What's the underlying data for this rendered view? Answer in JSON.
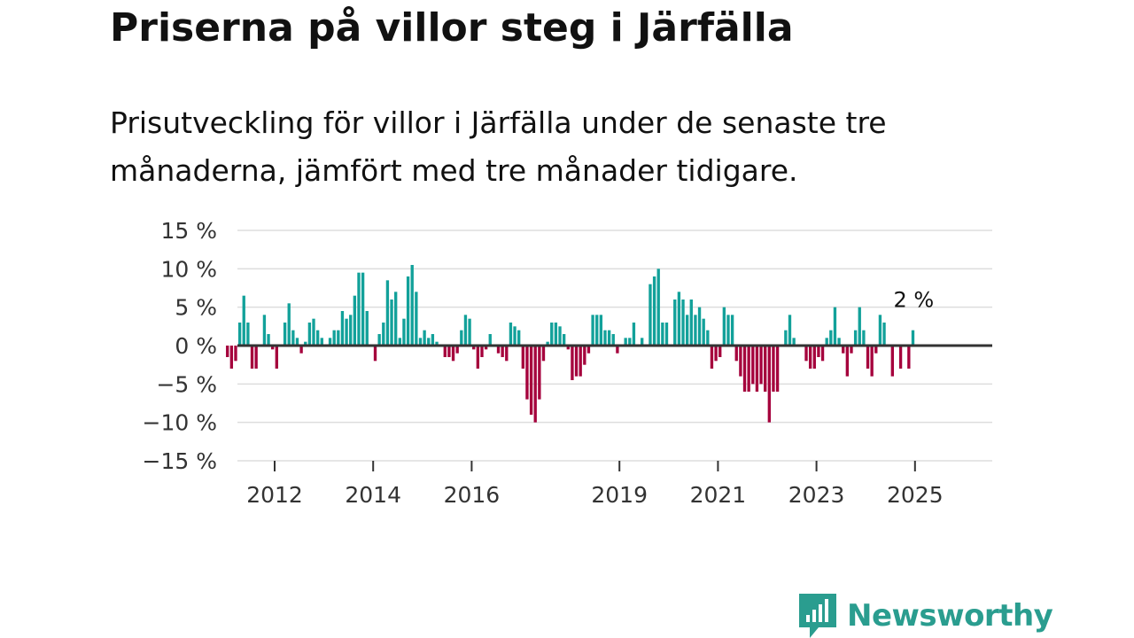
{
  "title": "Priserna på villor steg i Järfälla",
  "subtitle": "Prisutveckling för villor i Järfälla under de senaste tre månaderna, jämfört med tre månader tidigare.",
  "brand": {
    "name": "Newsworthy",
    "color": "#2a9d8f",
    "icon": "newsworthy-logo-icon"
  },
  "colors": {
    "positive": "#12a19a",
    "negative": "#a5003c",
    "grid": "#dddddd",
    "zero": "#333333"
  },
  "chart_data": {
    "type": "bar",
    "title": "Priserna på villor steg i Järfälla",
    "xlabel": "",
    "ylabel": "",
    "ylim": [
      -15,
      15
    ],
    "y_ticks": [
      15,
      10,
      5,
      0,
      -5,
      -10,
      -15
    ],
    "y_tick_labels": [
      "15 %",
      "10 %",
      "5 %",
      "0 %",
      "−5 %",
      "−10 %",
      "−15 %"
    ],
    "x_ticks": [
      2012,
      2014,
      2016,
      2019,
      2021,
      2023,
      2025
    ],
    "x_tick_labels": [
      "2012",
      "2014",
      "2016",
      "2019",
      "2021",
      "2023",
      "2025"
    ],
    "x_start": 2011.0,
    "months_per_bar": 1,
    "values": [
      -1.5,
      -3,
      -2,
      3,
      6.5,
      3,
      -3,
      -3,
      0,
      4,
      1.5,
      -0.5,
      -3,
      0,
      3,
      5.5,
      2,
      1,
      -1,
      0.5,
      3,
      3.5,
      2,
      1,
      0,
      1,
      2,
      2,
      4.5,
      3.5,
      4,
      6.5,
      9.5,
      9.5,
      4.5,
      0,
      -2,
      1.5,
      3,
      8.5,
      6,
      7,
      1,
      3.5,
      9,
      10.5,
      7,
      1,
      2,
      1,
      1.5,
      0.5,
      0,
      -1.5,
      -1.5,
      -2,
      -1,
      2,
      4,
      3.5,
      -0.5,
      -3,
      -1.5,
      -0.5,
      1.5,
      0,
      -1,
      -1.5,
      -2,
      3,
      2.5,
      2,
      -3,
      -7,
      -9,
      -10,
      -7,
      -2,
      0.5,
      3,
      3,
      2.5,
      1.5,
      -0.5,
      -4.5,
      -4,
      -4,
      -2.5,
      -1,
      4,
      4,
      4,
      2,
      2,
      1.5,
      -1,
      0,
      1,
      1,
      3,
      0,
      1,
      0,
      8,
      9,
      10,
      3,
      3,
      0,
      6,
      7,
      6,
      4,
      6,
      4,
      5,
      3.5,
      2,
      -3,
      -2,
      -1.5,
      5,
      4,
      4,
      -2,
      -4,
      -6,
      -6,
      -5,
      -6,
      -5,
      -6,
      -10,
      -6,
      -6,
      0,
      2,
      4,
      1,
      0,
      0,
      -2,
      -3,
      -3,
      -1.5,
      -2,
      1,
      2,
      5,
      1,
      -1,
      -4,
      -1,
      2,
      5,
      2,
      -3,
      -4,
      -1,
      4,
      3,
      0,
      -4,
      0,
      -3,
      0,
      -3,
      2
    ],
    "last_value_label": "2 %"
  }
}
